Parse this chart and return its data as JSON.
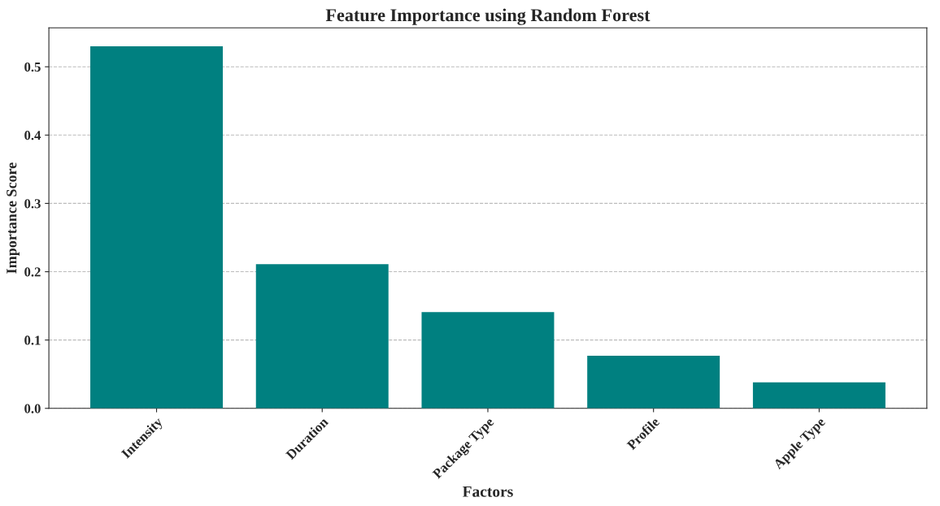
{
  "chart_data": {
    "type": "bar",
    "title": "Feature Importance using Random Forest",
    "xlabel": "Factors",
    "ylabel": "Importance Score",
    "categories": [
      "Intensity",
      "Duration",
      "Package Type",
      "Profile",
      "Apple Type"
    ],
    "values": [
      0.53,
      0.211,
      0.141,
      0.077,
      0.038
    ],
    "color": "#008080",
    "ylim": [
      0,
      0.557
    ],
    "yticks": [
      {
        "value": 0,
        "label": "0.0"
      },
      0.1,
      0.2,
      0.3,
      0.4,
      0.5
    ],
    "grid": "y"
  }
}
